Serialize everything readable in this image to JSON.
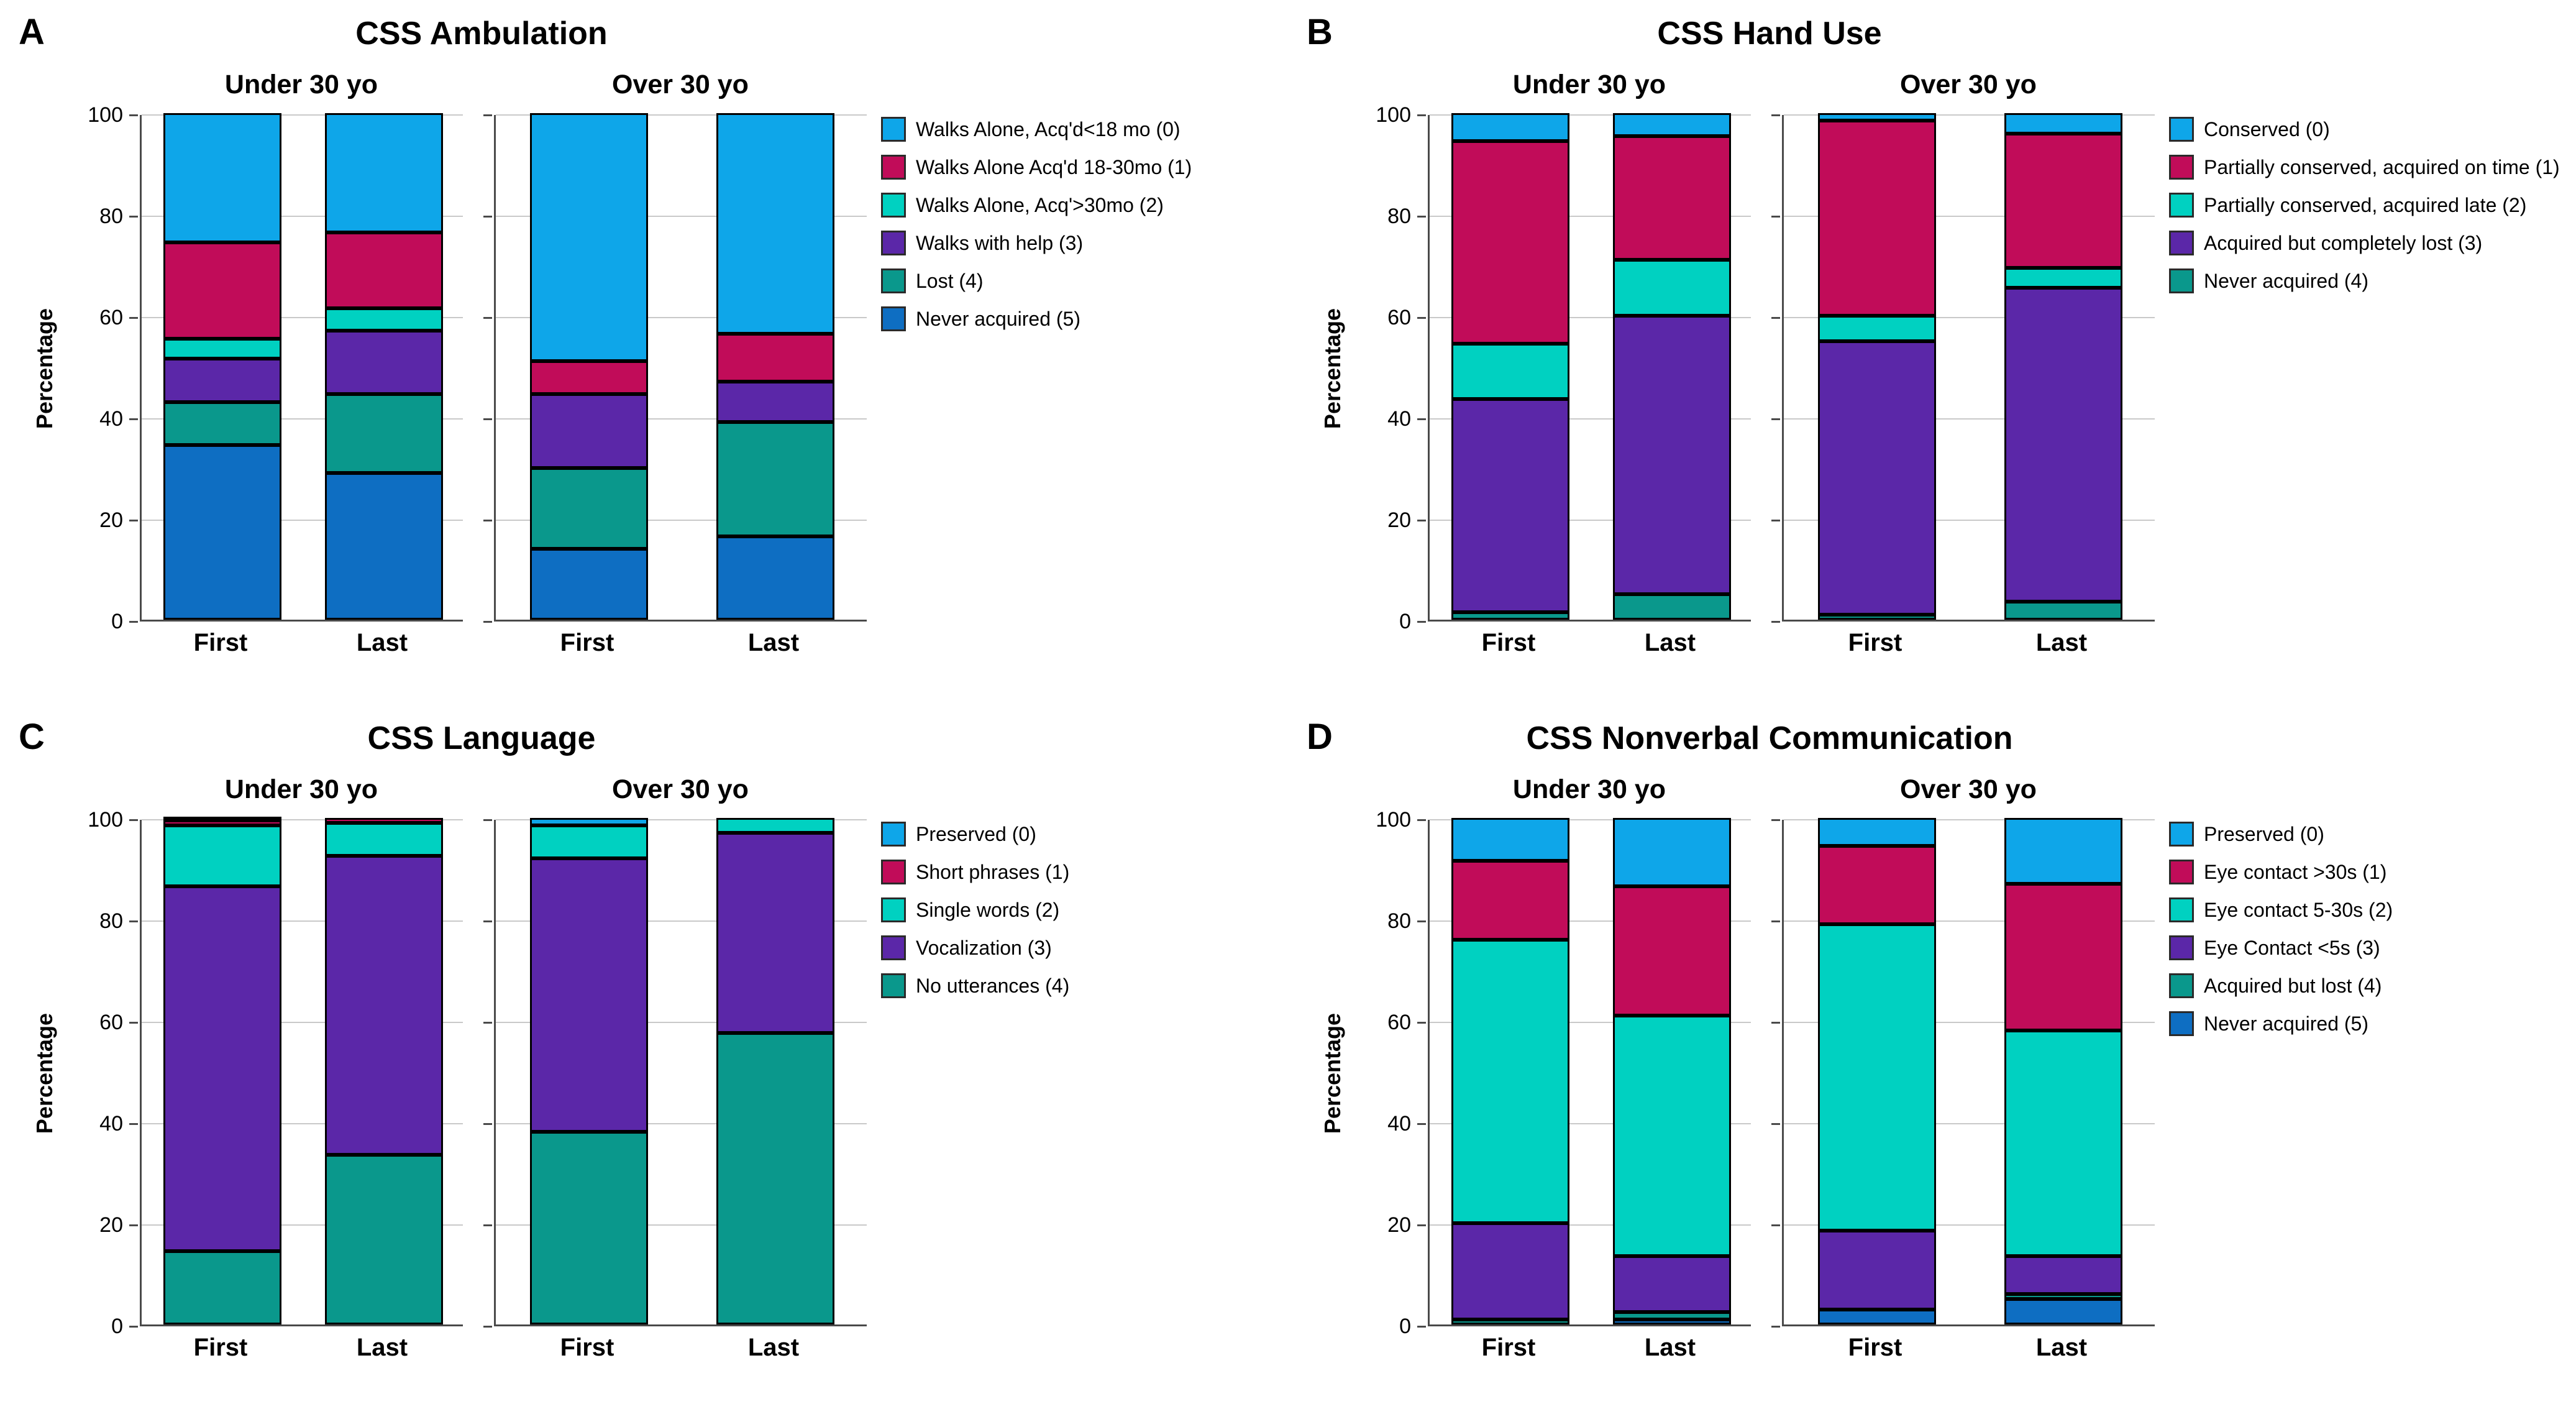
{
  "figure": {
    "background": "#ffffff",
    "axis_color": "#4a4a4a",
    "grid_color": "#c9c9c9"
  },
  "chart_data": [
    {
      "type": "bar",
      "stacked": true,
      "panel_label": "A",
      "title": "CSS Ambulation",
      "ylabel": "Percentage",
      "ylim": [
        0,
        100
      ],
      "yticks": [
        0,
        20,
        40,
        60,
        80,
        100
      ],
      "groups": [
        "Under 30 yo",
        "Over 30 yo"
      ],
      "categories": [
        "First",
        "Last"
      ],
      "bars": [
        "Under 30 yo First",
        "Under 30 yo Last",
        "Over 30 yo First",
        "Over 30 yo Last"
      ],
      "legend_position": "right",
      "series": [
        {
          "name": "Walks Alone, Acq'd<18 mo (0)",
          "color": "#0EA6E9",
          "values": [
            25.5,
            23.5,
            49.0,
            43.5
          ]
        },
        {
          "name": "Walks Alone Acq'd 18-30mo (1)",
          "color": "#C10C59",
          "values": [
            19.0,
            15.0,
            6.5,
            9.5
          ]
        },
        {
          "name": "Walks Alone, Acq'>30mo (2)",
          "color": "#00D1C1",
          "values": [
            4.0,
            4.5,
            0,
            0
          ]
        },
        {
          "name": "Walks with help (3)",
          "color": "#5B27A8",
          "values": [
            8.5,
            12.5,
            14.5,
            8.0
          ]
        },
        {
          "name": "Lost (4)",
          "color": "#0A988C",
          "values": [
            8.5,
            15.5,
            16.0,
            22.5
          ]
        },
        {
          "name": "Never acquired (5)",
          "color": "#0E6EC2",
          "values": [
            34.5,
            29.0,
            14.0,
            16.5
          ]
        }
      ]
    },
    {
      "type": "bar",
      "stacked": true,
      "panel_label": "B",
      "title": "CSS Hand Use",
      "ylabel": "Percentage",
      "ylim": [
        0,
        100
      ],
      "yticks": [
        0,
        20,
        40,
        60,
        80,
        100
      ],
      "groups": [
        "Under 30 yo",
        "Over 30 yo"
      ],
      "categories": [
        "First",
        "Last"
      ],
      "bars": [
        "Under 30 yo First",
        "Under 30 yo Last",
        "Over 30 yo First",
        "Over 30 yo Last"
      ],
      "legend_position": "right",
      "series": [
        {
          "name": "Conserved (0)",
          "color": "#0EA6E9",
          "values": [
            5.5,
            4.5,
            1.5,
            4.0
          ]
        },
        {
          "name": "Partially conserved, acquired on time (1)",
          "color": "#C10C59",
          "values": [
            40.0,
            24.5,
            38.5,
            26.5
          ]
        },
        {
          "name": "Partially conserved, acquired late (2)",
          "color": "#00D1C1",
          "values": [
            11.0,
            11.0,
            5.0,
            4.0
          ]
        },
        {
          "name": "Acquired but completely lost (3)",
          "color": "#5B27A8",
          "values": [
            42.0,
            55.0,
            54.0,
            62.0
          ]
        },
        {
          "name": "Never acquired (4)",
          "color": "#0A988C",
          "values": [
            1.5,
            5.0,
            1.0,
            3.5
          ]
        }
      ]
    },
    {
      "type": "bar",
      "stacked": true,
      "panel_label": "C",
      "title": "CSS Language",
      "ylabel": "Percentage",
      "ylim": [
        0,
        100
      ],
      "yticks": [
        0,
        20,
        40,
        60,
        80,
        100
      ],
      "groups": [
        "Under 30 yo",
        "Over 30 yo"
      ],
      "categories": [
        "First",
        "Last"
      ],
      "bars": [
        "Under 30 yo First",
        "Under 30 yo Last",
        "Over 30 yo First",
        "Over 30 yo Last"
      ],
      "legend_position": "right",
      "series": [
        {
          "name": "Preserved (0)",
          "color": "#0EA6E9",
          "values": [
            0.5,
            0,
            1.5,
            0
          ]
        },
        {
          "name": "Short phrases (1)",
          "color": "#C10C59",
          "values": [
            1.0,
            1.0,
            0,
            0
          ]
        },
        {
          "name": "Single words (2)",
          "color": "#00D1C1",
          "values": [
            12.0,
            6.5,
            6.5,
            3.0
          ]
        },
        {
          "name": "Vocalization (3)",
          "color": "#5B27A8",
          "values": [
            72.0,
            59.0,
            54.0,
            39.5
          ]
        },
        {
          "name": "No utterances (4)",
          "color": "#0A988C",
          "values": [
            14.5,
            33.5,
            38.0,
            57.5
          ]
        }
      ]
    },
    {
      "type": "bar",
      "stacked": true,
      "panel_label": "D",
      "title": "CSS Nonverbal Communication",
      "ylabel": "Percentage",
      "ylim": [
        0,
        100
      ],
      "yticks": [
        0,
        20,
        40,
        60,
        80,
        100
      ],
      "groups": [
        "Under 30 yo",
        "Over 30 yo"
      ],
      "categories": [
        "First",
        "Last"
      ],
      "bars": [
        "Under 30 yo First",
        "Under 30 yo Last",
        "Over 30 yo First",
        "Over 30 yo Last"
      ],
      "legend_position": "right",
      "series": [
        {
          "name": "Preserved (0)",
          "color": "#0EA6E9",
          "values": [
            8.5,
            13.5,
            5.5,
            13.0
          ]
        },
        {
          "name": "Eye contact >30s (1)",
          "color": "#C10C59",
          "values": [
            15.5,
            25.5,
            15.5,
            29.0
          ]
        },
        {
          "name": "Eye contact 5-30s (2)",
          "color": "#00D1C1",
          "values": [
            56.0,
            47.5,
            60.5,
            44.5
          ]
        },
        {
          "name": "Eye Contact <5s (3)",
          "color": "#5B27A8",
          "values": [
            19.0,
            11.0,
            15.5,
            7.5
          ]
        },
        {
          "name": "Acquired but lost (4)",
          "color": "#0A988C",
          "values": [
            1.0,
            1.5,
            0,
            1.0
          ]
        },
        {
          "name": "Never acquired (5)",
          "color": "#0E6EC2",
          "values": [
            0,
            1.0,
            3.0,
            5.0
          ]
        }
      ]
    }
  ]
}
